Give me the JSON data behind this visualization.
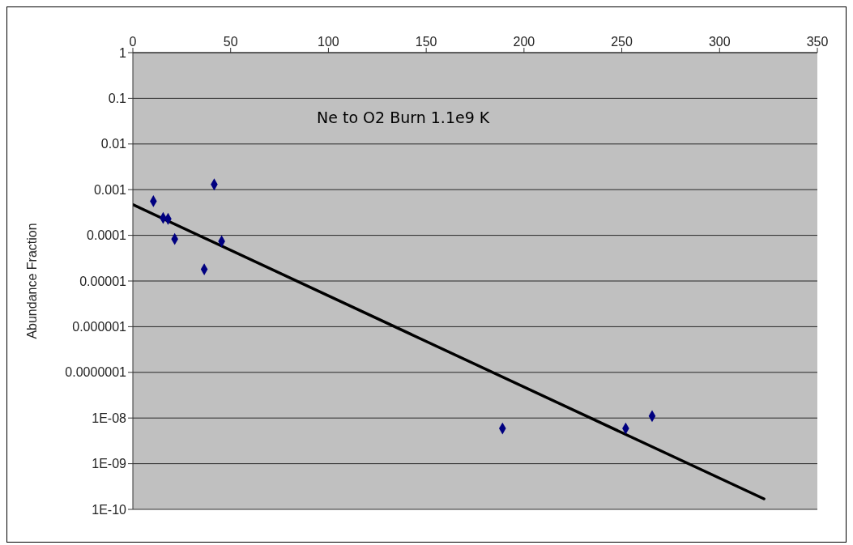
{
  "chart_data": {
    "type": "scatter",
    "ylabel": "Abundance Fraction",
    "annotations": [
      "Ne to O2 Burn 1.1e9 K"
    ],
    "log": "y",
    "grid": "y",
    "xlim": [
      0,
      350
    ],
    "xticks": [
      0,
      50,
      100,
      150,
      200,
      250,
      300,
      350
    ],
    "ylim": [
      1e-10,
      1
    ],
    "yticks": [
      1,
      0.1,
      0.01,
      0.001,
      0.0001,
      {
        "value": 1e-05,
        "label": "0.00001"
      },
      {
        "value": 1e-06,
        "label": "0.000001"
      },
      {
        "value": 1e-07,
        "label": "0.0000001"
      },
      {
        "value": 1e-08,
        "label": "1E-08"
      },
      {
        "value": 1e-09,
        "label": "1E-09"
      },
      {
        "value": 1e-10,
        "label": "1E-10"
      }
    ],
    "series": [
      {
        "marker": "diamond",
        "color": "#000080",
        "x": [
          10.5,
          15.5,
          18,
          21.4,
          36.5,
          41.6,
          45.4,
          189,
          252,
          265.5
        ],
        "values": [
          0.00056,
          0.00024,
          0.00023,
          8.3e-05,
          1.8e-05,
          0.0013,
          7.4e-05,
          5.9e-09,
          5.9e-09,
          1.1e-08
        ]
      },
      {
        "type": "line",
        "marker": "none",
        "line_style": "solid",
        "color": "#000000",
        "x": [
          0,
          322.7
        ],
        "values": [
          0.00047,
          1.7e-10
        ]
      }
    ]
  }
}
